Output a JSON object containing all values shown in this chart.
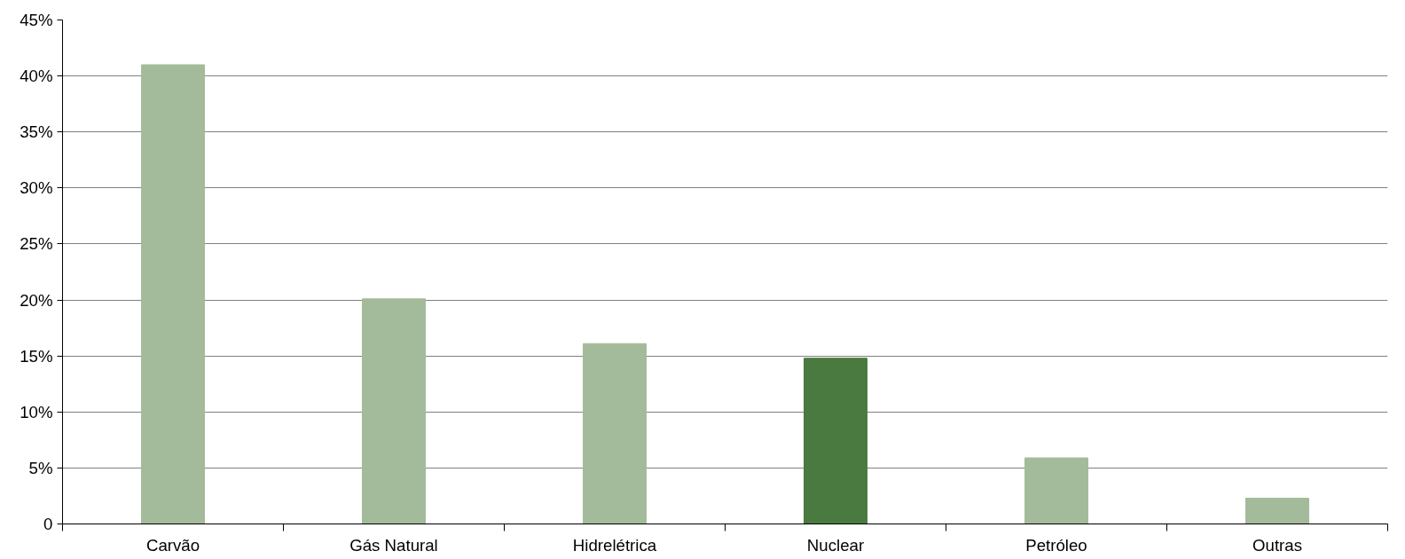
{
  "chart_data": {
    "type": "bar",
    "categories": [
      "Carvão",
      "Gás Natural",
      "Hidrelétrica",
      "Nuclear",
      "Petróleo",
      "Outras"
    ],
    "values": [
      41.0,
      20.1,
      16.1,
      14.8,
      5.9,
      2.3
    ],
    "colors": [
      "#a3bb9a",
      "#a3bb9a",
      "#a3bb9a",
      "#4a7a40",
      "#a3bb9a",
      "#a3bb9a"
    ],
    "ylim": [
      0,
      45
    ],
    "yticks": [
      0,
      {
        "value": 5,
        "label": "5%"
      },
      {
        "value": 10,
        "label": "10%"
      },
      {
        "value": 15,
        "label": "15%"
      },
      {
        "value": 20,
        "label": "20%"
      },
      {
        "value": 25,
        "label": "25%"
      },
      {
        "value": 30,
        "label": "30%"
      },
      {
        "value": 35,
        "label": "35%"
      },
      {
        "value": 40,
        "label": "40%"
      },
      {
        "value": 45,
        "label": "45%"
      }
    ],
    "grid": "y"
  }
}
